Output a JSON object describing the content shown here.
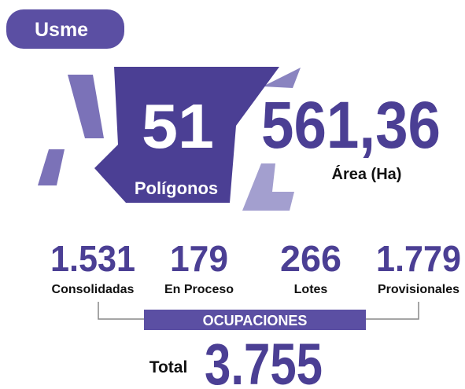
{
  "header": {
    "title": "Usme"
  },
  "polygons": {
    "value": "51",
    "label": "Polígonos"
  },
  "area": {
    "value": "561,36",
    "label": "Área (Ha)"
  },
  "occupations": {
    "items": [
      {
        "value": "1.531",
        "label": "Consolidadas"
      },
      {
        "value": "179",
        "label": "En Proceso"
      },
      {
        "value": "266",
        "label": "Lotes"
      },
      {
        "value": "1.779",
        "label": "Provisionales"
      }
    ],
    "banner": "OCUPACIONES",
    "total_label": "Total",
    "total_value": "3.755"
  }
}
